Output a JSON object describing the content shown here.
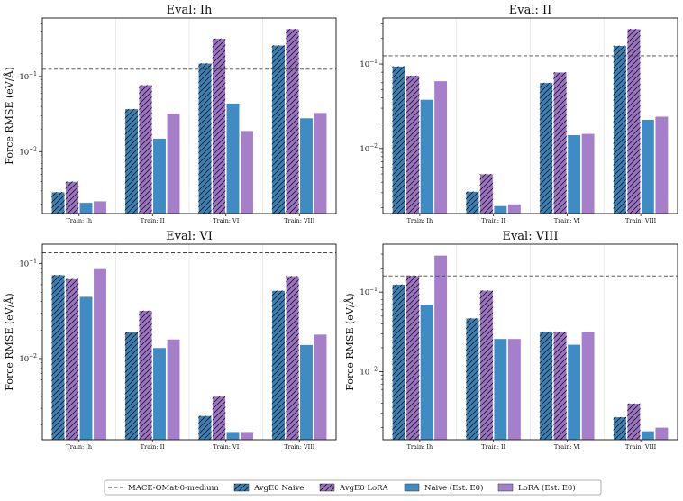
{
  "legend": {
    "placement": "bottom-center",
    "entries": [
      {
        "name": "MACE-OMat-0-medium",
        "kind": "dashed-line",
        "color": "#444444"
      },
      {
        "name": "AvgE0 Naive",
        "kind": "bar",
        "color": "#3a7fb5",
        "hatch": true
      },
      {
        "name": "AvgE0 LoRA",
        "kind": "bar",
        "color": "#9b72c4",
        "hatch": true
      },
      {
        "name": "Naive (Est. E0)",
        "kind": "bar",
        "color": "#3f8bc4",
        "hatch": false
      },
      {
        "name": "LoRA (Est. E0)",
        "kind": "bar",
        "color": "#a57fca",
        "hatch": false
      }
    ]
  },
  "chart_data": [
    {
      "type": "bar",
      "title": "Eval: Ih",
      "ylabel": "Force RMSE (eV/Å)",
      "yscale": "log",
      "ylim": [
        0.0015,
        0.6
      ],
      "yticks": [
        {
          "value": 0.01,
          "label": "10",
          "exp": "−2"
        },
        {
          "value": 0.1,
          "label": "10",
          "exp": "−1"
        }
      ],
      "categories": [
        "Train: Ih",
        "Train: II",
        "Train: VI",
        "Train: VIII"
      ],
      "reference_line": {
        "name": "MACE-OMat-0-medium",
        "value": 0.125
      },
      "series": [
        {
          "name": "AvgE0 Naive",
          "values": [
            0.0029,
            0.037,
            0.15,
            0.26
          ]
        },
        {
          "name": "AvgE0 LoRA",
          "values": [
            0.004,
            0.077,
            0.32,
            0.43
          ]
        },
        {
          "name": "Naive (Est. E0)",
          "values": [
            0.0021,
            0.015,
            0.044,
            0.028
          ]
        },
        {
          "name": "LoRA (Est. E0)",
          "values": [
            0.0022,
            0.032,
            0.019,
            0.033
          ]
        }
      ]
    },
    {
      "type": "bar",
      "title": "Eval: II",
      "ylabel": "",
      "yscale": "log",
      "ylim": [
        0.0017,
        0.35
      ],
      "yticks": [
        {
          "value": 0.01,
          "label": "10",
          "exp": "−2"
        },
        {
          "value": 0.1,
          "label": "10",
          "exp": "−1"
        }
      ],
      "categories": [
        "Train: Ih",
        "Train: II",
        "Train: VI",
        "Train: VIII"
      ],
      "reference_line": {
        "name": "MACE-OMat-0-medium",
        "value": 0.125
      },
      "series": [
        {
          "name": "AvgE0 Naive",
          "values": [
            0.094,
            0.0031,
            0.06,
            0.165
          ]
        },
        {
          "name": "AvgE0 LoRA",
          "values": [
            0.073,
            0.005,
            0.08,
            0.26
          ]
        },
        {
          "name": "Naive (Est. E0)",
          "values": [
            0.038,
            0.0021,
            0.0145,
            0.022
          ]
        },
        {
          "name": "LoRA (Est. E0)",
          "values": [
            0.063,
            0.0022,
            0.015,
            0.024
          ]
        }
      ]
    },
    {
      "type": "bar",
      "title": "Eval: VI",
      "ylabel": "Force RMSE (eV/Å)",
      "yscale": "log",
      "ylim": [
        0.0014,
        0.16
      ],
      "yticks": [
        {
          "value": 0.01,
          "label": "10",
          "exp": "−2"
        },
        {
          "value": 0.1,
          "label": "10",
          "exp": "−1"
        }
      ],
      "categories": [
        "Train: Ih",
        "Train: II",
        "Train: VI",
        "Train: VIII"
      ],
      "reference_line": {
        "name": "MACE-OMat-0-medium",
        "value": 0.13
      },
      "series": [
        {
          "name": "AvgE0 Naive",
          "values": [
            0.076,
            0.019,
            0.0025,
            0.052
          ]
        },
        {
          "name": "AvgE0 LoRA",
          "values": [
            0.069,
            0.032,
            0.004,
            0.074
          ]
        },
        {
          "name": "Naive (Est. E0)",
          "values": [
            0.045,
            0.013,
            0.0017,
            0.014
          ]
        },
        {
          "name": "LoRA (Est. E0)",
          "values": [
            0.09,
            0.016,
            0.0017,
            0.018
          ]
        }
      ]
    },
    {
      "type": "bar",
      "title": "Eval: VIII",
      "ylabel": "Force RMSE (eV/Å)",
      "yscale": "log",
      "ylim": [
        0.0014,
        0.4
      ],
      "yticks": [
        {
          "value": 0.01,
          "label": "10",
          "exp": "−2"
        },
        {
          "value": 0.1,
          "label": "10",
          "exp": "−1"
        }
      ],
      "categories": [
        "Train: Ih",
        "Train: II",
        "Train: VI",
        "Train: VIII"
      ],
      "reference_line": {
        "name": "MACE-OMat-0-medium",
        "value": 0.16
      },
      "series": [
        {
          "name": "AvgE0 Naive",
          "values": [
            0.125,
            0.047,
            0.032,
            0.0027
          ]
        },
        {
          "name": "AvgE0 LoRA",
          "values": [
            0.16,
            0.105,
            0.032,
            0.004
          ]
        },
        {
          "name": "Naive (Est. E0)",
          "values": [
            0.07,
            0.026,
            0.022,
            0.0018
          ]
        },
        {
          "name": "LoRA (Est. E0)",
          "values": [
            0.29,
            0.026,
            0.032,
            0.002
          ]
        }
      ]
    }
  ]
}
